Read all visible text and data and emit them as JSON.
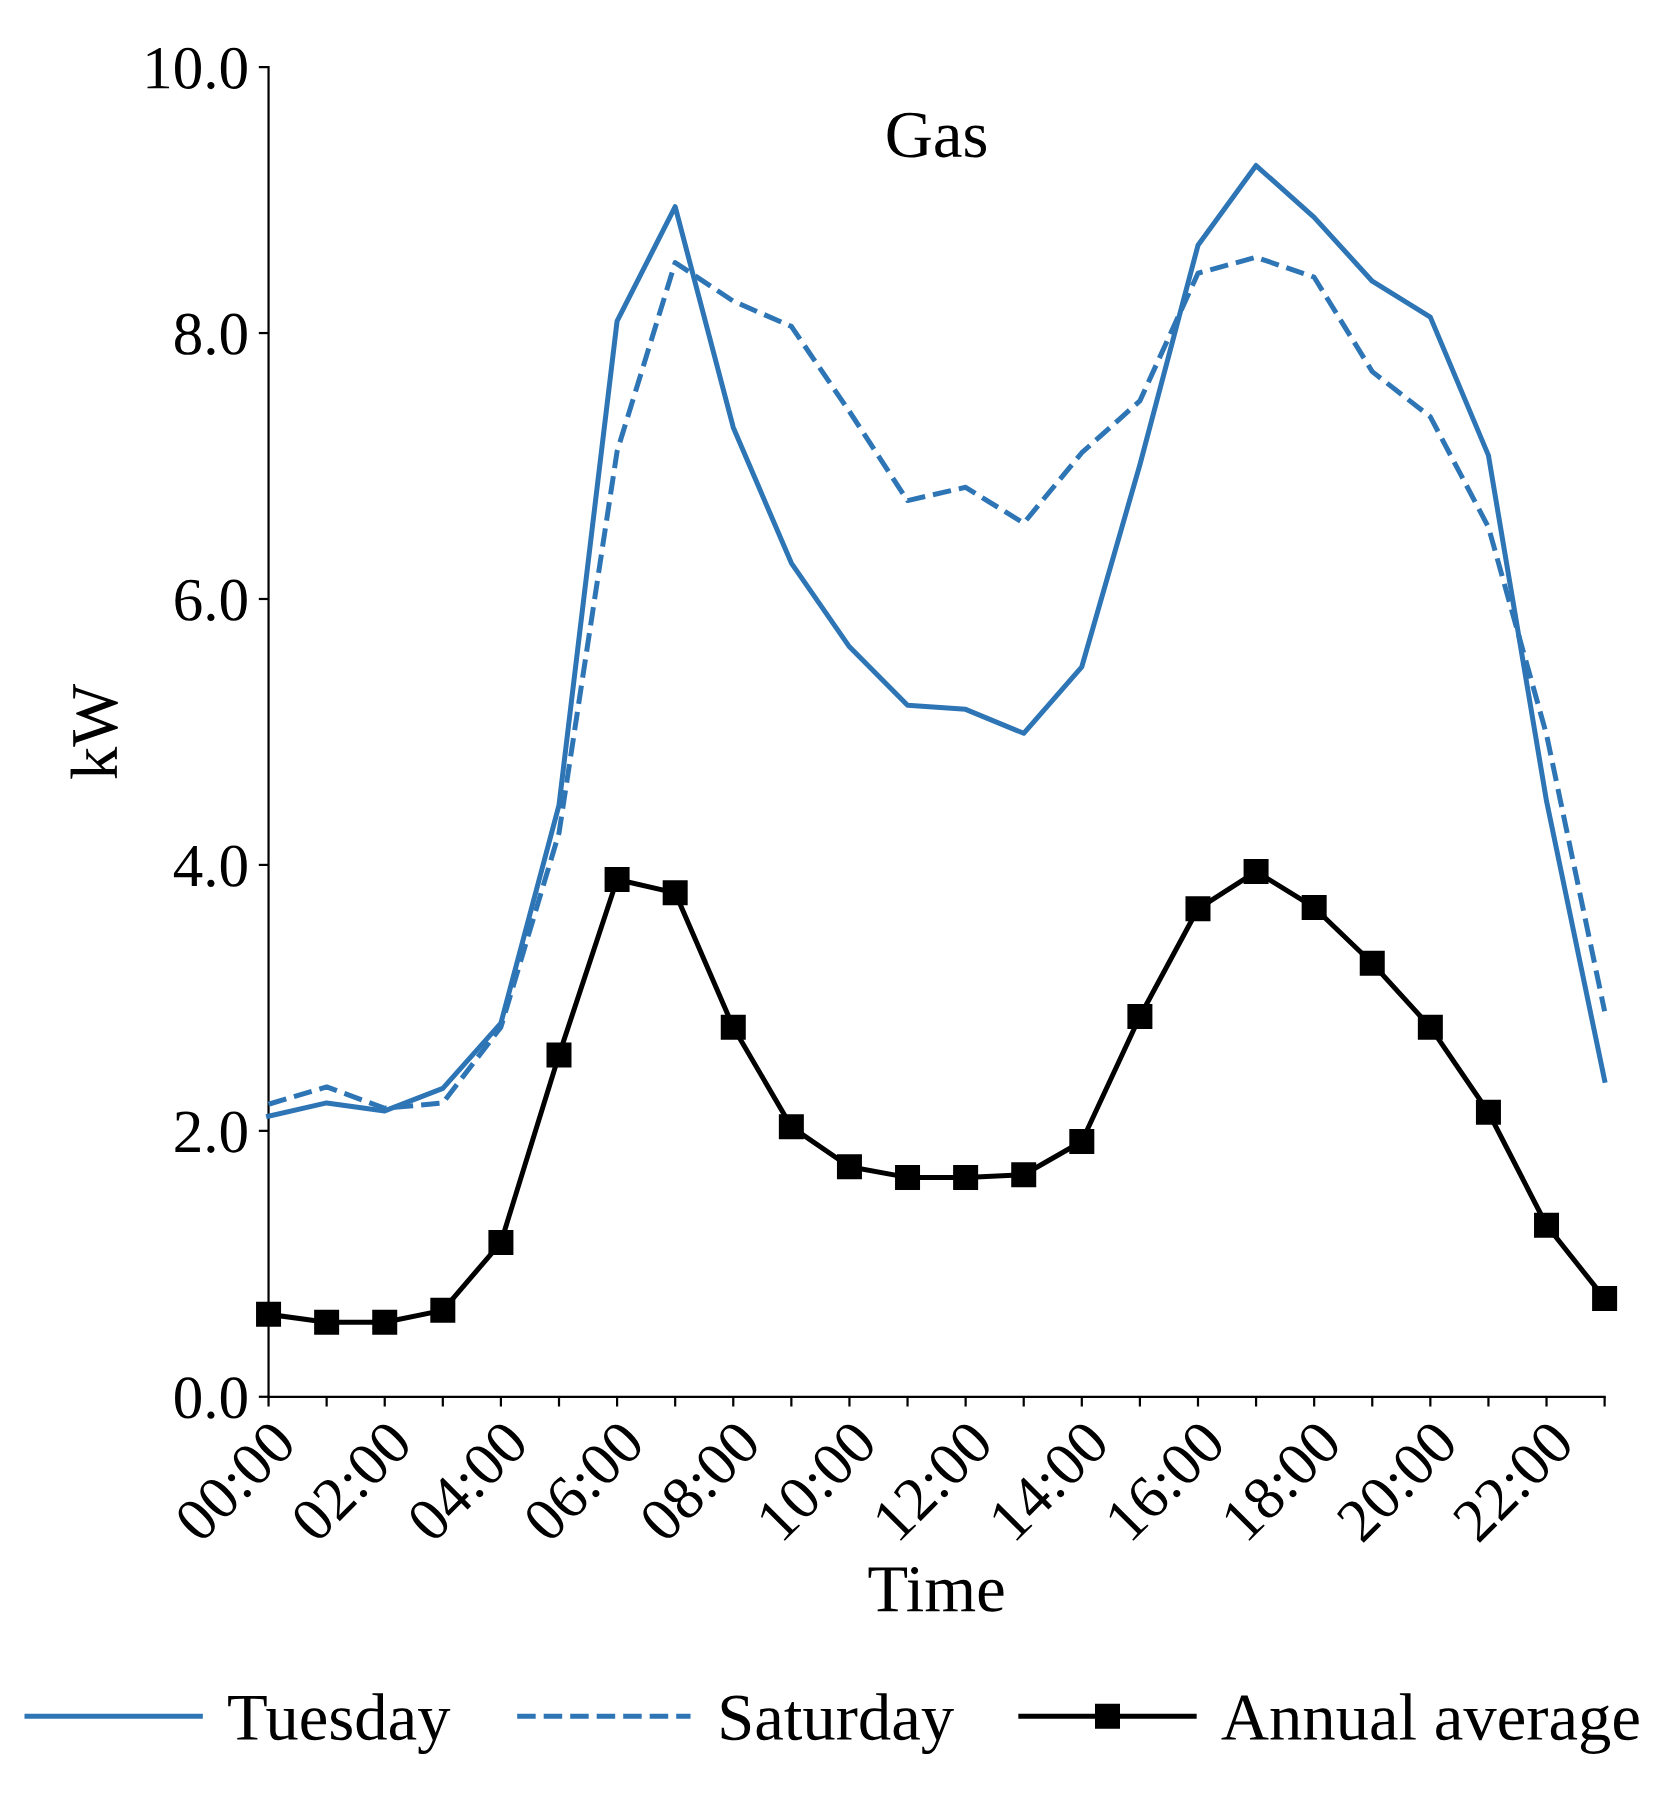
{
  "chart_data": {
    "type": "line",
    "title": "Gas",
    "xlabel": "Time",
    "ylabel": "kW",
    "categories": [
      "00:00",
      null,
      "02:00",
      null,
      "04:00",
      null,
      "06:00",
      null,
      "08:00",
      null,
      "10:00",
      null,
      "12:00",
      null,
      "14:00",
      null,
      "16:00",
      null,
      "18:00",
      null,
      "20:00",
      null,
      "22:00",
      null
    ],
    "series": [
      {
        "name": "Tuesday",
        "color": "#2e75b6",
        "line_style": "solid",
        "marker": "none",
        "values": [
          2.11,
          2.21,
          2.15,
          2.32,
          2.81,
          4.45,
          8.09,
          8.95,
          7.29,
          6.27,
          5.64,
          5.2,
          5.17,
          4.99,
          5.49,
          7.01,
          8.66,
          9.26,
          8.87,
          8.39,
          8.12,
          7.08,
          4.48,
          2.38
        ]
      },
      {
        "name": "Saturday",
        "color": "#2e75b6",
        "line_style": "dashed",
        "marker": "none",
        "values": [
          2.2,
          2.33,
          2.17,
          2.21,
          2.78,
          4.24,
          7.11,
          8.53,
          8.24,
          8.05,
          7.41,
          6.74,
          6.84,
          6.57,
          7.1,
          7.49,
          8.45,
          8.57,
          8.42,
          7.71,
          7.37,
          6.54,
          4.98,
          2.9
        ]
      },
      {
        "name": "Annual average",
        "color": "#000000",
        "line_style": "solid",
        "marker": "square",
        "values": [
          0.62,
          0.56,
          0.56,
          0.65,
          1.16,
          2.57,
          3.89,
          3.79,
          2.78,
          2.03,
          1.73,
          1.65,
          1.65,
          1.67,
          1.92,
          2.86,
          3.67,
          3.95,
          3.68,
          3.26,
          2.78,
          2.14,
          1.29,
          0.74
        ]
      }
    ],
    "ylim": [
      0,
      10
    ],
    "yticks": [
      {
        "value": 0,
        "label": "0.0"
      },
      {
        "value": 2,
        "label": "2.0"
      },
      {
        "value": 4,
        "label": "4.0"
      },
      {
        "value": 6,
        "label": "6.0"
      },
      {
        "value": 8,
        "label": "8.0"
      },
      {
        "value": 10,
        "label": "10.0"
      }
    ],
    "grid": false,
    "legend": "bottom"
  }
}
